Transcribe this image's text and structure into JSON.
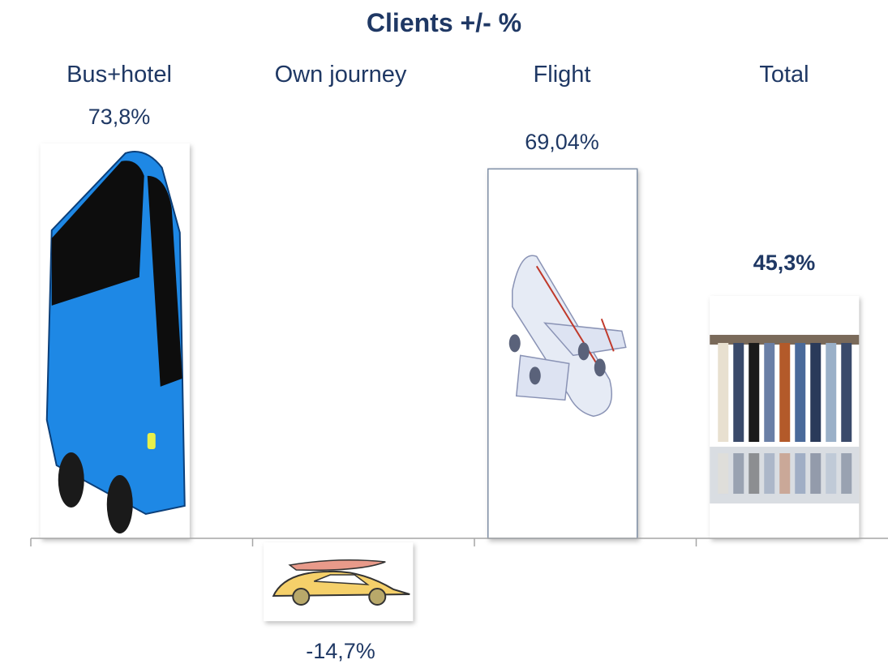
{
  "chart_data": {
    "type": "bar",
    "title": "Clients +/- %",
    "xlabel": "",
    "ylabel": "",
    "categories": [
      "Bus+hotel",
      "Own journey",
      "Flight",
      "Total"
    ],
    "values": [
      73.8,
      -14.7,
      69.04,
      45.3
    ],
    "value_labels": [
      "73,8%",
      "-14,7%",
      "69,04%",
      "45,3%"
    ],
    "bar_images": [
      "bus-icon",
      "car-icon",
      "airplane-icon",
      "people-icon"
    ],
    "ylim": [
      -20,
      80
    ],
    "grid": false,
    "legend": "none"
  },
  "colors": {
    "text": "#1f3864",
    "axis": "#a6a6a6",
    "bus": "#1e88e5",
    "car": "#f5d06a",
    "plane": "#e6ebf5"
  }
}
